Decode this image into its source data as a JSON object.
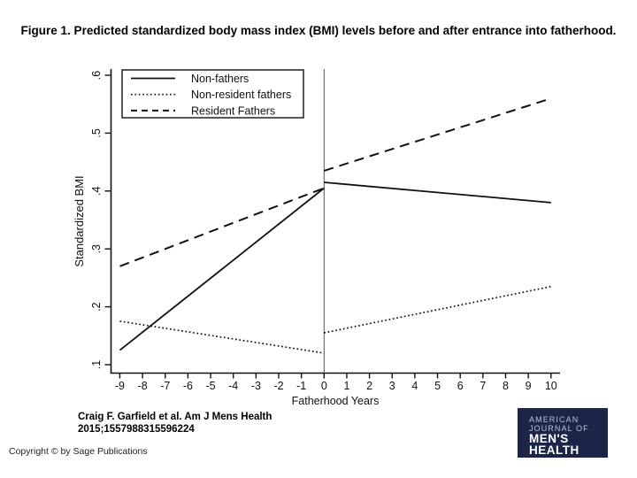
{
  "figure_title": "Figure 1. Predicted standardized body mass index (BMI) levels before and after entrance into fatherhood.",
  "citation": {
    "line1": "Craig F. Garfield et al. Am J Mens Health",
    "line2": "2015;1557988315596224"
  },
  "copyright_notice": "Copyright © by Sage Publications",
  "journal_logo": {
    "top1": "AMERICAN",
    "top2": "JOURNAL OF",
    "bottom1": "MEN'S",
    "bottom2": "HEALTH",
    "background_color": "#1b2547",
    "text_color": "#ffffff"
  },
  "chart_data": {
    "type": "line",
    "title": "Figure 1. Predicted standardized body mass index (BMI) levels before and after entrance into fatherhood.",
    "xlabel": "Fatherhood Years",
    "ylabel": "Standardized BMI",
    "xlim": [
      -9,
      10
    ],
    "ylim": [
      0.1,
      0.6
    ],
    "grid": false,
    "line_color": "#111111",
    "reference_line_x": 0,
    "x_ticks": {
      "values": [
        -9,
        -8,
        -7,
        -6,
        -5,
        -4,
        -3,
        -2,
        -1,
        0,
        1,
        2,
        3,
        4,
        5,
        6,
        7,
        8,
        9,
        10
      ],
      "labels": [
        "-9",
        "-8",
        "-7",
        "-6",
        "-5",
        "-4",
        "-3",
        "-2",
        "-1",
        "0",
        "1",
        "2",
        "3",
        "4",
        "5",
        "6",
        "7",
        "8",
        "9",
        "10"
      ]
    },
    "y_ticks": {
      "values": [
        0.1,
        0.2,
        0.3,
        0.4,
        0.5,
        0.6
      ],
      "labels": [
        ".1",
        ".2",
        ".3",
        ".4",
        ".5",
        ".6"
      ]
    },
    "series": [
      {
        "name": "Non-fathers",
        "style": "solid",
        "segments": [
          [
            [
              -9,
              0.125
            ],
            [
              0,
              0.405
            ]
          ],
          [
            [
              0,
              0.415
            ],
            [
              10,
              0.38
            ]
          ]
        ]
      },
      {
        "name": "Non-resident fathers",
        "style": "dotted",
        "segments": [
          [
            [
              -9,
              0.175
            ],
            [
              0,
              0.12
            ]
          ],
          [
            [
              0,
              0.155
            ],
            [
              10,
              0.235
            ]
          ]
        ]
      },
      {
        "name": "Resident Fathers",
        "style": "dashed",
        "segments": [
          [
            [
              -9,
              0.27
            ],
            [
              0,
              0.405
            ]
          ],
          [
            [
              0,
              0.435
            ],
            [
              10,
              0.56
            ]
          ]
        ]
      }
    ],
    "legend": {
      "position": "top-left",
      "entries": [
        "Non-fathers",
        "Non-resident fathers",
        "Resident Fathers"
      ]
    }
  }
}
